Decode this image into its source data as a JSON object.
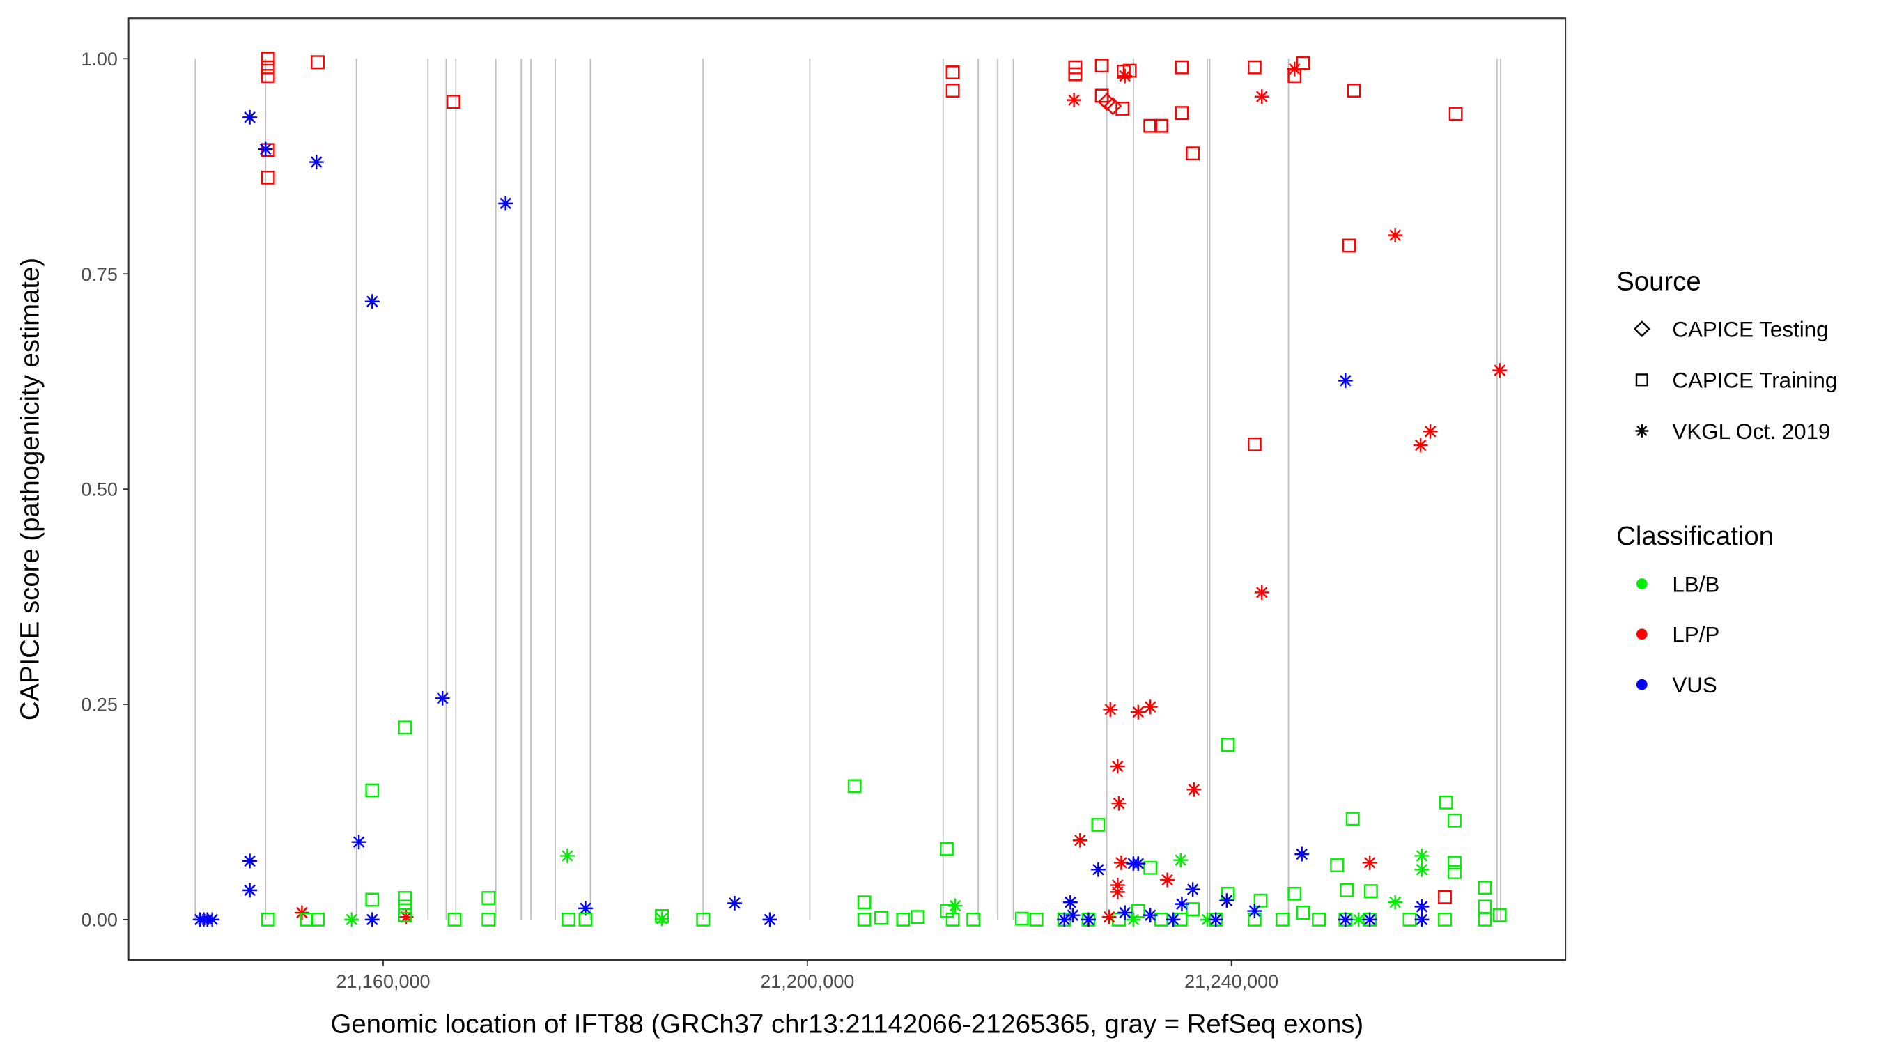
{
  "chart_data": {
    "type": "scatter",
    "title": "",
    "xlabel": "Genomic location of IFT88 (GRCh37 chr13:21142066-21265365, gray = RefSeq exons)",
    "ylabel": "CAPICE score (pathogenicity estimate)",
    "xlim": [
      21136000,
      21271500
    ],
    "ylim": [
      -0.047,
      1.047
    ],
    "x_ticks": [
      21160000,
      21200000,
      21240000
    ],
    "x_tick_labels": [
      "21,160,000",
      "21,200,000",
      "21,240,000"
    ],
    "y_ticks": [
      0,
      0.25,
      0.5,
      0.75,
      1.0
    ],
    "y_tick_labels": [
      "0.00",
      "0.25",
      "0.50",
      "0.75",
      "1.00"
    ],
    "grid": false,
    "exon_color": "#bebebe",
    "exons": [
      21142283,
      21148913,
      21157485,
      21164229,
      21165944,
      21166858,
      21170630,
      21173030,
      21173945,
      21176231,
      21179545,
      21190175,
      21200234,
      21212807,
      21216121,
      21217950,
      21219436,
      21228237,
      21230752,
      21237724,
      21237953,
      21245382,
      21265042,
      21265385
    ],
    "legend": {
      "placement": "right",
      "source_title": "Source",
      "sources": [
        {
          "label": "CAPICE Testing",
          "shape": "diamond"
        },
        {
          "label": "CAPICE Training",
          "shape": "square"
        },
        {
          "label": "VKGL Oct. 2019",
          "shape": "asterisk"
        }
      ],
      "class_title": "Classification",
      "classes": [
        {
          "label": "LB/B",
          "color": "#00ee00"
        },
        {
          "label": "LP/P",
          "color": "#ff0000"
        },
        {
          "label": "VUS",
          "color": "#0000ff"
        }
      ]
    },
    "point_fields": [
      "position",
      "score",
      "source_index",
      "class_index"
    ],
    "points": [
      [
        21149141,
        1.0,
        1,
        1
      ],
      [
        21149141,
        0.99,
        1,
        1
      ],
      [
        21149141,
        0.98,
        1,
        1
      ],
      [
        21149141,
        0.894,
        1,
        1
      ],
      [
        21149141,
        0.862,
        1,
        1
      ],
      [
        21153828,
        0.996,
        1,
        1
      ],
      [
        21166629,
        0.95,
        1,
        1
      ],
      [
        21147427,
        0.932,
        2,
        2
      ],
      [
        21148913,
        0.895,
        2,
        2
      ],
      [
        21153713,
        0.88,
        2,
        2
      ],
      [
        21171544,
        0.832,
        2,
        2
      ],
      [
        21158971,
        0.718,
        2,
        2
      ],
      [
        21165601,
        0.257,
        2,
        2
      ],
      [
        21157714,
        0.09,
        2,
        2
      ],
      [
        21147427,
        0.068,
        2,
        2
      ],
      [
        21147427,
        0.034,
        2,
        2
      ],
      [
        21179088,
        0.013,
        2,
        2
      ],
      [
        21193147,
        0.019,
        2,
        2
      ],
      [
        21196462,
        0.0,
        2,
        2
      ],
      [
        21142741,
        0.0,
        2,
        2
      ],
      [
        21143084,
        0.0,
        2,
        2
      ],
      [
        21143427,
        0.0,
        2,
        2
      ],
      [
        21143884,
        0.0,
        2,
        2
      ],
      [
        21158971,
        0.0,
        2,
        2
      ],
      [
        21152342,
        0.008,
        2,
        1
      ],
      [
        21162172,
        0.003,
        2,
        1
      ],
      [
        21162057,
        0.223,
        1,
        0
      ],
      [
        21158971,
        0.15,
        1,
        0
      ],
      [
        21158971,
        0.023,
        1,
        0
      ],
      [
        21162057,
        0.025,
        1,
        0
      ],
      [
        21162057,
        0.015,
        1,
        0
      ],
      [
        21162057,
        0.005,
        1,
        0
      ],
      [
        21169944,
        0.025,
        1,
        0
      ],
      [
        21169944,
        0.0,
        1,
        0
      ],
      [
        21166744,
        0.0,
        1,
        0
      ],
      [
        21149141,
        0.0,
        1,
        0
      ],
      [
        21152799,
        0.0,
        1,
        0
      ],
      [
        21153828,
        0.0,
        1,
        0
      ],
      [
        21177488,
        0.0,
        1,
        0
      ],
      [
        21179088,
        0.0,
        1,
        0
      ],
      [
        21186289,
        0.004,
        1,
        0
      ],
      [
        21190175,
        0.0,
        1,
        0
      ],
      [
        21204463,
        0.155,
        1,
        0
      ],
      [
        21205377,
        0.02,
        1,
        0
      ],
      [
        21205377,
        0.0,
        1,
        0
      ],
      [
        21206977,
        0.002,
        1,
        0
      ],
      [
        21209035,
        0.0,
        1,
        0
      ],
      [
        21210406,
        0.003,
        1,
        0
      ],
      [
        21213150,
        0.082,
        1,
        0
      ],
      [
        21213150,
        0.01,
        1,
        0
      ],
      [
        21213721,
        0.0,
        1,
        0
      ],
      [
        21215664,
        0.0,
        1,
        0
      ],
      [
        21220236,
        0.001,
        1,
        0
      ],
      [
        21221608,
        0.0,
        1,
        0
      ],
      [
        21227437,
        0.11,
        1,
        0
      ],
      [
        21232352,
        0.06,
        1,
        0
      ],
      [
        21239667,
        0.203,
        1,
        0
      ],
      [
        21239667,
        0.03,
        1,
        0
      ],
      [
        21242753,
        0.022,
        1,
        0
      ],
      [
        21245954,
        0.03,
        1,
        0
      ],
      [
        21249954,
        0.063,
        1,
        0
      ],
      [
        21250868,
        0.034,
        1,
        0
      ],
      [
        21251440,
        0.117,
        1,
        0
      ],
      [
        21253154,
        0.033,
        1,
        0
      ],
      [
        21260241,
        0.136,
        1,
        0
      ],
      [
        21261041,
        0.115,
        1,
        0
      ],
      [
        21261041,
        0.066,
        1,
        0
      ],
      [
        21261041,
        0.055,
        1,
        0
      ],
      [
        21263899,
        0.037,
        1,
        0
      ],
      [
        21263899,
        0.015,
        1,
        0
      ],
      [
        21224237,
        0.0,
        1,
        0
      ],
      [
        21226523,
        0.0,
        1,
        0
      ],
      [
        21229380,
        0.0,
        1,
        0
      ],
      [
        21233381,
        0.0,
        1,
        0
      ],
      [
        21235209,
        0.0,
        1,
        0
      ],
      [
        21238524,
        0.0,
        1,
        0
      ],
      [
        21242182,
        0.0,
        1,
        0
      ],
      [
        21244811,
        0.0,
        1,
        0
      ],
      [
        21248240,
        0.0,
        1,
        0
      ],
      [
        21250754,
        0.0,
        1,
        0
      ],
      [
        21253040,
        0.0,
        1,
        0
      ],
      [
        21256812,
        0.0,
        1,
        0
      ],
      [
        21260127,
        0.0,
        1,
        0
      ],
      [
        21263899,
        0.0,
        1,
        0
      ],
      [
        21265300,
        0.005,
        1,
        0
      ],
      [
        21231209,
        0.01,
        1,
        0
      ],
      [
        21236352,
        0.012,
        1,
        0
      ],
      [
        21246754,
        0.008,
        1,
        0
      ],
      [
        21177374,
        0.074,
        2,
        0
      ],
      [
        21157028,
        0.0,
        2,
        0
      ],
      [
        21186289,
        0.001,
        2,
        0
      ],
      [
        21213950,
        0.016,
        2,
        0
      ],
      [
        21235209,
        0.069,
        2,
        0
      ],
      [
        21257955,
        0.074,
        2,
        0
      ],
      [
        21257955,
        0.058,
        2,
        0
      ],
      [
        21255441,
        0.02,
        2,
        0
      ],
      [
        21230752,
        0.0,
        2,
        0
      ],
      [
        21237724,
        0.0,
        2,
        0
      ],
      [
        21252000,
        0.0,
        2,
        0
      ],
      [
        21213721,
        0.984,
        1,
        1
      ],
      [
        21213721,
        0.984,
        1,
        1
      ],
      [
        21213721,
        0.963,
        1,
        1
      ],
      [
        21225265,
        0.99,
        1,
        1
      ],
      [
        21225265,
        0.982,
        1,
        1
      ],
      [
        21227780,
        0.992,
        1,
        1
      ],
      [
        21227780,
        0.957,
        1,
        1
      ],
      [
        21229838,
        0.985,
        1,
        1
      ],
      [
        21230409,
        0.986,
        1,
        1
      ],
      [
        21229723,
        0.942,
        1,
        1
      ],
      [
        21232352,
        0.922,
        1,
        1
      ],
      [
        21233381,
        0.922,
        1,
        1
      ],
      [
        21235323,
        0.99,
        1,
        1
      ],
      [
        21235323,
        0.937,
        1,
        1
      ],
      [
        21236352,
        0.89,
        1,
        1
      ],
      [
        21242182,
        0.99,
        1,
        1
      ],
      [
        21242182,
        0.552,
        1,
        1
      ],
      [
        21245954,
        0.98,
        1,
        1
      ],
      [
        21246754,
        0.995,
        1,
        1
      ],
      [
        21251554,
        0.963,
        1,
        1
      ],
      [
        21251097,
        0.783,
        1,
        1
      ],
      [
        21261155,
        0.936,
        1,
        1
      ],
      [
        21260127,
        0.026,
        1,
        1
      ],
      [
        21228237,
        0.95,
        0,
        1
      ],
      [
        21228809,
        0.945,
        0,
        1
      ],
      [
        21225151,
        0.952,
        2,
        1
      ],
      [
        21229952,
        0.98,
        2,
        1
      ],
      [
        21242867,
        0.956,
        2,
        1
      ],
      [
        21245954,
        0.988,
        2,
        1
      ],
      [
        21255441,
        0.795,
        2,
        1
      ],
      [
        21265300,
        0.638,
        2,
        1
      ],
      [
        21258755,
        0.567,
        2,
        1
      ],
      [
        21257841,
        0.551,
        2,
        1
      ],
      [
        21242867,
        0.38,
        2,
        1
      ],
      [
        21228580,
        0.244,
        2,
        1
      ],
      [
        21231209,
        0.241,
        2,
        1
      ],
      [
        21232352,
        0.247,
        2,
        1
      ],
      [
        21229266,
        0.178,
        2,
        1
      ],
      [
        21229380,
        0.135,
        2,
        1
      ],
      [
        21236467,
        0.151,
        2,
        1
      ],
      [
        21225723,
        0.092,
        2,
        1
      ],
      [
        21229609,
        0.066,
        2,
        1
      ],
      [
        21253040,
        0.066,
        2,
        1
      ],
      [
        21233952,
        0.046,
        2,
        1
      ],
      [
        21229266,
        0.04,
        2,
        1
      ],
      [
        21229266,
        0.032,
        2,
        1
      ],
      [
        21228466,
        0.003,
        2,
        1
      ],
      [
        21250754,
        0.626,
        2,
        2
      ],
      [
        21246639,
        0.076,
        2,
        2
      ],
      [
        21227437,
        0.058,
        2,
        2
      ],
      [
        21230752,
        0.065,
        2,
        2
      ],
      [
        21231209,
        0.065,
        2,
        2
      ],
      [
        21236352,
        0.035,
        2,
        2
      ],
      [
        21239553,
        0.022,
        2,
        2
      ],
      [
        21224808,
        0.02,
        2,
        2
      ],
      [
        21242182,
        0.01,
        2,
        2
      ],
      [
        21257955,
        0.015,
        2,
        2
      ],
      [
        21225037,
        0.005,
        2,
        2
      ],
      [
        21224237,
        0.0,
        2,
        2
      ],
      [
        21226523,
        0.0,
        2,
        2
      ],
      [
        21229952,
        0.008,
        2,
        2
      ],
      [
        21232352,
        0.005,
        2,
        2
      ],
      [
        21234500,
        0.0,
        2,
        2
      ],
      [
        21235323,
        0.018,
        2,
        2
      ],
      [
        21238524,
        0.0,
        2,
        2
      ],
      [
        21250754,
        0.0,
        2,
        2
      ],
      [
        21257955,
        0.0,
        2,
        2
      ],
      [
        21253040,
        0.0,
        2,
        2
      ]
    ]
  }
}
